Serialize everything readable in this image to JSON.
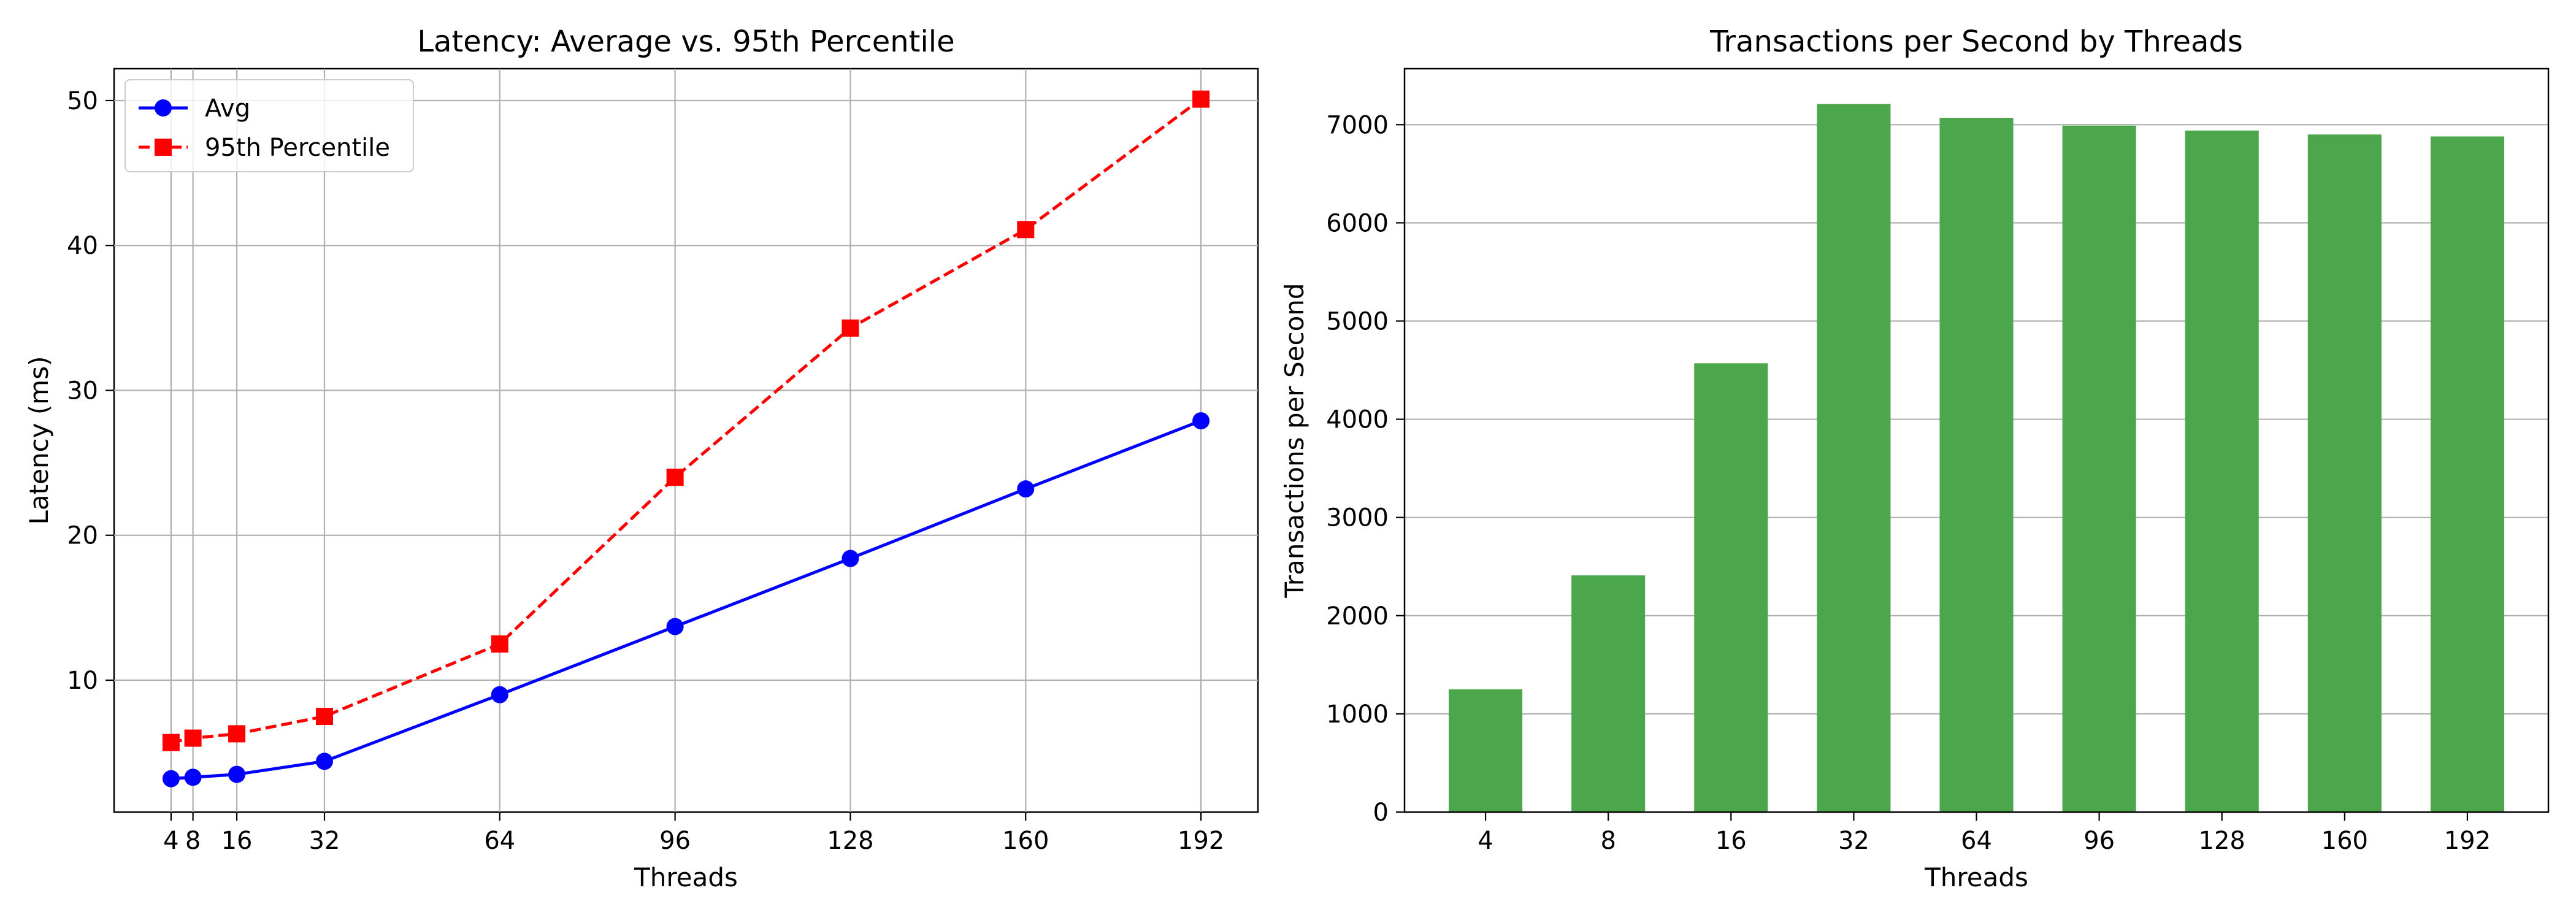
{
  "chart_data": [
    {
      "type": "line",
      "title": "Latency: Average vs. 95th Percentile",
      "xlabel": "Threads",
      "ylabel": "Latency (ms)",
      "x": [
        4,
        8,
        16,
        32,
        64,
        96,
        128,
        160,
        192
      ],
      "xticks": [
        4,
        8,
        16,
        32,
        64,
        96,
        128,
        160,
        192
      ],
      "xlim": [
        -6.4,
        202.4
      ],
      "ylim": [
        0.9,
        52.2
      ],
      "yticks": [
        10,
        20,
        30,
        40,
        50
      ],
      "grid": true,
      "legend": "upper-left",
      "series": [
        {
          "name": "Avg",
          "values": [
            3.2,
            3.3,
            3.5,
            4.4,
            9.0,
            13.7,
            18.4,
            23.2,
            27.9
          ],
          "color": "#0000ff",
          "marker": "circle",
          "linestyle": "solid"
        },
        {
          "name": "95th Percentile",
          "values": [
            5.7,
            6.0,
            6.3,
            7.5,
            12.5,
            24.0,
            34.3,
            41.1,
            50.1
          ],
          "color": "#ff0000",
          "marker": "square",
          "linestyle": "dashed"
        }
      ]
    },
    {
      "type": "bar",
      "title": "Transactions per Second by Threads",
      "xlabel": "Threads",
      "ylabel": "Transactions per Second",
      "categories": [
        "4",
        "8",
        "16",
        "32",
        "64",
        "96",
        "128",
        "160",
        "192"
      ],
      "values": [
        1250,
        2410,
        4570,
        7210,
        7070,
        6990,
        6940,
        6900,
        6880
      ],
      "ylim": [
        0,
        7570
      ],
      "yticks": [
        0,
        1000,
        2000,
        3000,
        4000,
        5000,
        6000,
        7000
      ],
      "grid": "y",
      "color": "#4ca64c"
    }
  ]
}
